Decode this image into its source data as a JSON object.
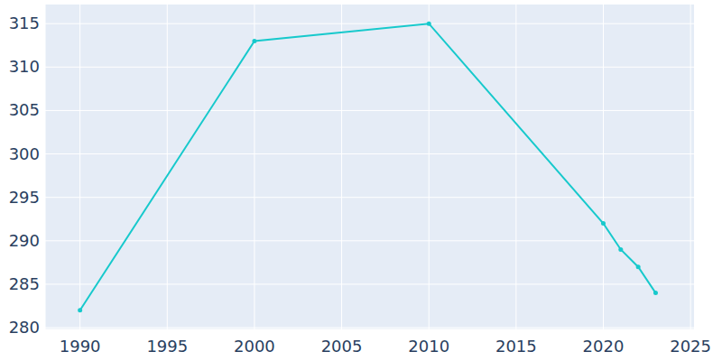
{
  "chart_data": {
    "type": "line",
    "x": [
      1990,
      2000,
      2010,
      2020,
      2021,
      2022,
      2023
    ],
    "values": [
      282,
      313,
      315,
      292,
      289,
      287,
      284
    ],
    "color": "#17c9cc",
    "marker": "circle",
    "xlim": [
      1988,
      2025.2
    ],
    "xticks": [
      1990,
      1995,
      2000,
      2005,
      2010,
      2015,
      2020,
      2025
    ],
    "ylim": [
      279.8,
      317.2
    ],
    "yticks": [
      280,
      285,
      290,
      295,
      300,
      305,
      310,
      315
    ],
    "grid": true
  }
}
